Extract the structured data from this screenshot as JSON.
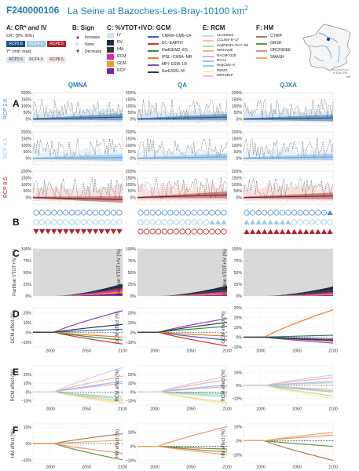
{
  "header": {
    "code": "F240000106",
    "station": "La Seine at Bazoches-Les-Bray-10100 km",
    "area_exp": "2"
  },
  "legend": {
    "a": {
      "title": "A: CR* and IV",
      "line1": "CR*: [5%, 95%]",
      "line2": "Y*: [min, max]",
      "rcps": [
        "RCP2.6",
        "RCP4.5",
        "RCP8.5"
      ]
    },
    "b": {
      "title": "B: Sign",
      "items": [
        "Increase",
        "None",
        "Decrease"
      ]
    },
    "c": {
      "title": "C: %VTOT+IV",
      "items": [
        {
          "label": "IV",
          "color": "#e0e0e0"
        },
        {
          "label": "RV",
          "color": "#1b2a52"
        },
        {
          "label": "HM",
          "color": "#333333"
        },
        {
          "label": "RCM",
          "color": "#e2289b"
        },
        {
          "label": "GCM",
          "color": "#f29a1c"
        },
        {
          "label": "RCP",
          "color": "#7b1fa2"
        }
      ]
    },
    "d": {
      "title": "D: GCM",
      "items": [
        {
          "label": "CNRM−CM5−LR",
          "color": "#3a63c4"
        },
        {
          "label": "EC−EARTH",
          "color": "#d6302c"
        },
        {
          "label": "HadGEM2−ES",
          "color": "#2e8b57"
        },
        {
          "label": "IPSL−CM5A−MR",
          "color": "#f07a1a"
        },
        {
          "label": "MPI−ESM−LR",
          "color": "#8e44ad"
        },
        {
          "label": "NorESM1−M",
          "color": "#2f3b48"
        }
      ]
    },
    "e": {
      "title": "E: RCM",
      "items": [
        {
          "label": "ALADIN63",
          "color": "#bcd7ef"
        },
        {
          "label": "CCLM4−8−17",
          "color": "#f3cc8f"
        },
        {
          "label": "HadREM3−GA7−05",
          "color": "#b7dda0"
        },
        {
          "label": "HIRHAM5",
          "color": "#f2b0b0"
        },
        {
          "label": "RACMO22E",
          "color": "#c7b3df"
        },
        {
          "label": "RCA4",
          "color": "#a8bedc"
        },
        {
          "label": "RegCM4−6",
          "color": "#9dd3c7"
        },
        {
          "label": "REMO",
          "color": "#f7ef9a"
        },
        {
          "label": "WRF381P",
          "color": "#d9c6ef"
        }
      ]
    },
    "f": {
      "title": "F: HM",
      "items": [
        {
          "label": "CTRIP",
          "color": "#a87c5c"
        },
        {
          "label": "GRSD",
          "color": "#6b8f3e"
        },
        {
          "label": "ORCHIDEE",
          "color": "#e8917a"
        },
        {
          "label": "SMASH",
          "color": "#f3a85a"
        }
      ]
    }
  },
  "map": {
    "scale": "0 100 250",
    "unit": "km"
  },
  "chart_data": {
    "type": "line",
    "columns": [
      "QMNA",
      "QA",
      "QJXA"
    ],
    "rows": {
      "A": "A",
      "B": "B",
      "C": "C",
      "D": "D",
      "E": "E",
      "F": "F"
    },
    "rcp_rows": [
      {
        "label": "RCP 2.6",
        "color": "#4a8ac4"
      },
      {
        "label": "RCP 4.5",
        "color": "#9ecbe8"
      },
      {
        "label": "RCP 8.5",
        "color": "#b2202b"
      }
    ],
    "x_ticks": [
      2000,
      2050,
      2100
    ],
    "xlim": [
      1976,
      2100
    ],
    "panel_A": {
      "ylim": [
        -50,
        200
      ],
      "y_ticks": [
        "200%",
        "150%",
        "100%",
        "50%",
        "0%"
      ],
      "series": [
        {
          "column": "QMNA",
          "rcp": "RCP 2.6",
          "trend_end": 15
        },
        {
          "column": "QMNA",
          "rcp": "RCP 4.5",
          "trend_end": 5
        },
        {
          "column": "QMNA",
          "rcp": "RCP 8.5",
          "trend_end": -15
        },
        {
          "column": "QA",
          "rcp": "RCP 2.6",
          "trend_end": 15
        },
        {
          "column": "QA",
          "rcp": "RCP 4.5",
          "trend_end": 10
        },
        {
          "column": "QA",
          "rcp": "RCP 8.5",
          "trend_end": 20
        },
        {
          "column": "QJXA",
          "rcp": "RCP 2.6",
          "trend_end": 8
        },
        {
          "column": "QJXA",
          "rcp": "RCP 4.5",
          "trend_end": 10
        },
        {
          "column": "QJXA",
          "rcp": "RCP 8.5",
          "trend_end": 12
        }
      ]
    },
    "panel_B": {
      "signs": [
        [
          "noneeeeeeeeeee",
          "noneeeeeeeeeee",
          "decdecdecdecdecdecdecdecdecdecdecdecdecdec"
        ],
        [
          "-",
          "-",
          "-"
        ]
      ],
      "grid": {
        "QMNA": [
          "OOOOOOOOOOOOOOO",
          "OOOOOOOOOOOOOOO",
          "VVVVVVVVVVVVVVV"
        ],
        "QA": [
          "OOOOOOOOOOOOOOO",
          "OOOOOOOOOOOOAAA",
          "OOOOOOOOOOOOOOO"
        ],
        "QJXA": [
          "OOOOOOOOOOOOOOA",
          "AAAAAAAAOOOOOOO",
          "AAAAAAAAAAAAAAA"
        ]
      }
    },
    "panel_C": {
      "ylabel": "Partition VTOT+IV (%)",
      "y_ticks": [
        "100%",
        "75%",
        "50%",
        "25%",
        "0%"
      ],
      "end_values": {
        "QMNA": {
          "RV": 7,
          "HM": 3,
          "RCM": 6,
          "GCM": 4,
          "RCP": 6
        },
        "QA": {
          "RV": 7,
          "HM": 5,
          "RCM": 4,
          "GCM": 3,
          "RCP": 3
        },
        "QJXA": {
          "RV": 6,
          "HM": 6,
          "RCM": 4,
          "GCM": 2,
          "RCP": 2
        }
      }
    },
    "panel_D": {
      "ylabel": "GCM effect (%)",
      "y_ticks": {
        "QMNA": [
          "20%",
          "10%",
          "0%",
          "−10%"
        ],
        "QA": [
          "20%",
          "10%",
          "0%",
          "−10%"
        ],
        "QJXA": [
          "30%",
          "20%",
          "10%",
          "0%",
          "−10%"
        ]
      },
      "ylim": {
        "QMNA": [
          -15,
          25
        ],
        "QA": [
          -15,
          25
        ],
        "QJXA": [
          -10,
          30
        ]
      },
      "end_values": {
        "QMNA": {
          "CNRM−CM5−LR": 3,
          "EC−EARTH": -12,
          "HadGEM2−ES": -8,
          "IPSL−CM5A−MR": -5,
          "MPI−ESM−LR": 22,
          "NorESM1−M": 8
        },
        "QA": {
          "CNRM−CM5−LR": -8,
          "EC−EARTH": -14,
          "HadGEM2−ES": 6,
          "IPSL−CM5A−MR": -4,
          "MPI−ESM−LR": 14,
          "NorESM1−M": 10
        },
        "QJXA": {
          "CNRM−CM5−LR": -2,
          "EC−EARTH": -4,
          "HadGEM2−ES": 2,
          "IPSL−CM5A−MR": 28,
          "MPI−ESM−LR": -6,
          "NorESM1−M": -3
        }
      }
    },
    "panel_E": {
      "ylabel": "RCM effect (%)",
      "y_ticks": {
        "QMNA": [
          "20%",
          "10%",
          "0%",
          "−10%"
        ],
        "QA": [
          "20%",
          "10%",
          "0%",
          "−10%"
        ],
        "QJXA": [
          "10%",
          "0%",
          "−10%"
        ]
      },
      "ylim": {
        "QMNA": [
          -15,
          30
        ],
        "QA": [
          -15,
          30
        ],
        "QJXA": [
          -15,
          15
        ]
      },
      "end_values": {
        "QMNA": {
          "ALADIN63": -10,
          "CCLM4−8−17": -12,
          "HadREM3−GA7−05": -8,
          "HIRHAM5": 18,
          "RACMO22E": 10,
          "RCA4": 12,
          "RegCM4−6": -6,
          "REMO": -14,
          "WRF381P": 28
        },
        "QA": {
          "ALADIN63": -6,
          "CCLM4−8−17": -12,
          "HadREM3−GA7−05": -4,
          "HIRHAM5": 14,
          "RACMO22E": 6,
          "RCA4": 8,
          "RegCM4−6": -2,
          "REMO": -14,
          "WRF381P": 18
        },
        "QJXA": {
          "ALADIN63": 2,
          "CCLM4−8−17": -3,
          "HadREM3−GA7−05": -8,
          "HIRHAM5": 6,
          "RACMO22E": -5,
          "RCA4": 3,
          "RegCM4−6": -4,
          "REMO": -10,
          "WRF381P": 8
        }
      }
    },
    "panel_F": {
      "ylabel": "HM effect (%)",
      "y_ticks": {
        "QMNA": [
          "10%",
          "0%",
          "−10%"
        ],
        "QA": [
          "10%",
          "0%",
          "−10%"
        ],
        "QJXA": [
          "10%",
          "0%",
          "−10%"
        ]
      },
      "ylim": {
        "QMNA": [
          -12,
          12
        ],
        "QA": [
          -12,
          16
        ],
        "QJXA": [
          -16,
          12
        ]
      },
      "end_values": {
        "QMNA": {
          "CTRIP": 6,
          "GRSD": -10,
          "ORCHIDEE": -6,
          "SMASH": 2
        },
        "QA": {
          "CTRIP": -4,
          "GRSD": -2,
          "ORCHIDEE": 14,
          "SMASH": -6
        },
        "QJXA": {
          "CTRIP": -14,
          "GRSD": -4,
          "ORCHIDEE": 4,
          "SMASH": 6
        }
      }
    }
  }
}
